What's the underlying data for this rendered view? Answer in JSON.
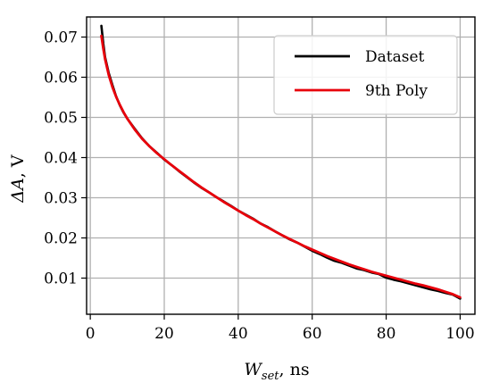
{
  "chart_data": {
    "type": "line",
    "title": "",
    "xlabel": {
      "main": "W",
      "sub": "set",
      "unit": ", ns"
    },
    "ylabel": {
      "main": "ΔA",
      "unit": ", V"
    },
    "xlim": [
      -1,
      104
    ],
    "ylim": [
      0.001,
      0.075
    ],
    "xticks": [
      0,
      20,
      40,
      60,
      80,
      100
    ],
    "xtick_labels": [
      "0",
      "20",
      "40",
      "60",
      "80",
      "100"
    ],
    "yticks": [
      0.01,
      0.02,
      0.03,
      0.04,
      0.05,
      0.06,
      0.07
    ],
    "ytick_labels": [
      "0.01",
      "0.02",
      "0.03",
      "0.04",
      "0.05",
      "0.06",
      "0.07"
    ],
    "grid": true,
    "legend_position": "top-right",
    "series": [
      {
        "name": "Dataset",
        "color": "#000000",
        "x": [
          3,
          3.5,
          4,
          5,
          6,
          7,
          8,
          9,
          10,
          12,
          14,
          16,
          18,
          20,
          22,
          24,
          26,
          28,
          30,
          32,
          34,
          36,
          38,
          40,
          42,
          44,
          46,
          48,
          50,
          52,
          54,
          56,
          58,
          60,
          62,
          64,
          66,
          68,
          70,
          72,
          74,
          76,
          78,
          80,
          82,
          84,
          86,
          88,
          90,
          92,
          94,
          96,
          98,
          100
        ],
        "values": [
          0.0728,
          0.0685,
          0.065,
          0.061,
          0.058,
          0.0552,
          0.053,
          0.0512,
          0.0497,
          0.0472,
          0.0448,
          0.0428,
          0.0412,
          0.0395,
          0.0381,
          0.0366,
          0.0352,
          0.0338,
          0.0325,
          0.0314,
          0.0302,
          0.0291,
          0.028,
          0.0268,
          0.0258,
          0.0248,
          0.0236,
          0.0227,
          0.0216,
          0.0206,
          0.0196,
          0.0188,
          0.0178,
          0.0168,
          0.016,
          0.0151,
          0.0143,
          0.0138,
          0.0131,
          0.0124,
          0.012,
          0.0114,
          0.011,
          0.0101,
          0.0096,
          0.0092,
          0.0087,
          0.0082,
          0.0077,
          0.0072,
          0.0068,
          0.0063,
          0.0059,
          0.0049
        ]
      },
      {
        "name": "9th Poly",
        "color": "#e8000b",
        "x": [
          3,
          3.5,
          4,
          5,
          6,
          7,
          8,
          9,
          10,
          12,
          14,
          16,
          18,
          20,
          22,
          24,
          26,
          28,
          30,
          32,
          34,
          36,
          38,
          40,
          42,
          44,
          46,
          48,
          50,
          52,
          54,
          56,
          58,
          60,
          62,
          64,
          66,
          68,
          70,
          72,
          74,
          76,
          78,
          80,
          82,
          84,
          86,
          88,
          90,
          92,
          94,
          96,
          98,
          100
        ],
        "values": [
          0.0703,
          0.0672,
          0.0645,
          0.0605,
          0.0575,
          0.0551,
          0.0531,
          0.0513,
          0.0497,
          0.047,
          0.0447,
          0.0428,
          0.0411,
          0.0396,
          0.0381,
          0.0367,
          0.0353,
          0.0339,
          0.0326,
          0.0314,
          0.0302,
          0.029,
          0.0279,
          0.0268,
          0.0257,
          0.0247,
          0.0236,
          0.0226,
          0.0216,
          0.0206,
          0.0197,
          0.0188,
          0.0179,
          0.0171,
          0.0163,
          0.0155,
          0.0148,
          0.0141,
          0.0134,
          0.0128,
          0.0122,
          0.0116,
          0.0111,
          0.0106,
          0.0101,
          0.0096,
          0.0091,
          0.0086,
          0.0082,
          0.0077,
          0.0072,
          0.0066,
          0.006,
          0.0052
        ]
      }
    ]
  }
}
